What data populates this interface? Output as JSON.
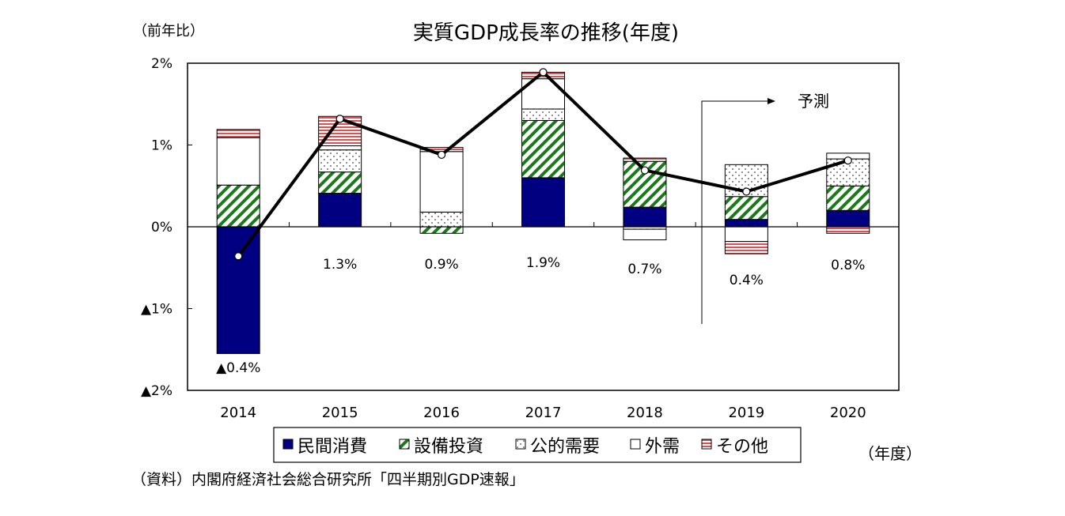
{
  "chart_data": {
    "type": "bar",
    "subtype": "stacked-bar-with-line",
    "title": "実質GDP成長率の推移(年度)",
    "ylabel": "（前年比）",
    "xlabel": "（年度）",
    "ylim": [
      -2,
      2
    ],
    "yticks": [
      2,
      1,
      0,
      -1,
      -2
    ],
    "ytick_labels": [
      "2%",
      "1%",
      "0%",
      "▲1%",
      "▲2%"
    ],
    "grid": false,
    "legend_position": "bottom",
    "categories": [
      "2014",
      "2015",
      "2016",
      "2017",
      "2018",
      "2019",
      "2020"
    ],
    "series": [
      {
        "name": "民間消費",
        "pattern": "solid",
        "color": "#000080",
        "values": [
          -1.55,
          0.41,
          0.0,
          0.6,
          0.24,
          0.09,
          0.2
        ]
      },
      {
        "name": "設備投資",
        "pattern": "hatch",
        "color": "#1a7a1a",
        "values": [
          0.51,
          0.26,
          -0.08,
          0.7,
          0.56,
          0.28,
          0.3
        ]
      },
      {
        "name": "公的需要",
        "pattern": "dots",
        "color": "#555555",
        "values": [
          0.0,
          0.27,
          0.18,
          0.14,
          -0.03,
          0.39,
          0.33
        ]
      },
      {
        "name": "外需",
        "pattern": "none",
        "color": "#ffffff",
        "values": [
          0.58,
          0.05,
          0.74,
          0.37,
          -0.13,
          -0.18,
          0.07
        ]
      },
      {
        "name": "その他",
        "pattern": "hlines",
        "color": "#e05050",
        "values": [
          0.1,
          0.36,
          0.05,
          0.08,
          0.04,
          -0.15,
          -0.08
        ]
      }
    ],
    "line_series": {
      "name": "実質GDP成長率",
      "values": [
        -0.36,
        1.32,
        0.88,
        1.89,
        0.69,
        0.43,
        0.81
      ]
    },
    "data_labels": [
      "▲0.4%",
      "1.3%",
      "0.9%",
      "1.9%",
      "0.7%",
      "0.4%",
      "0.8%"
    ],
    "annotation": {
      "text": "予測",
      "from_category": "2019"
    },
    "source": "（資料）内閣府経済社会総合研究所「四半期別GDP速報」"
  }
}
